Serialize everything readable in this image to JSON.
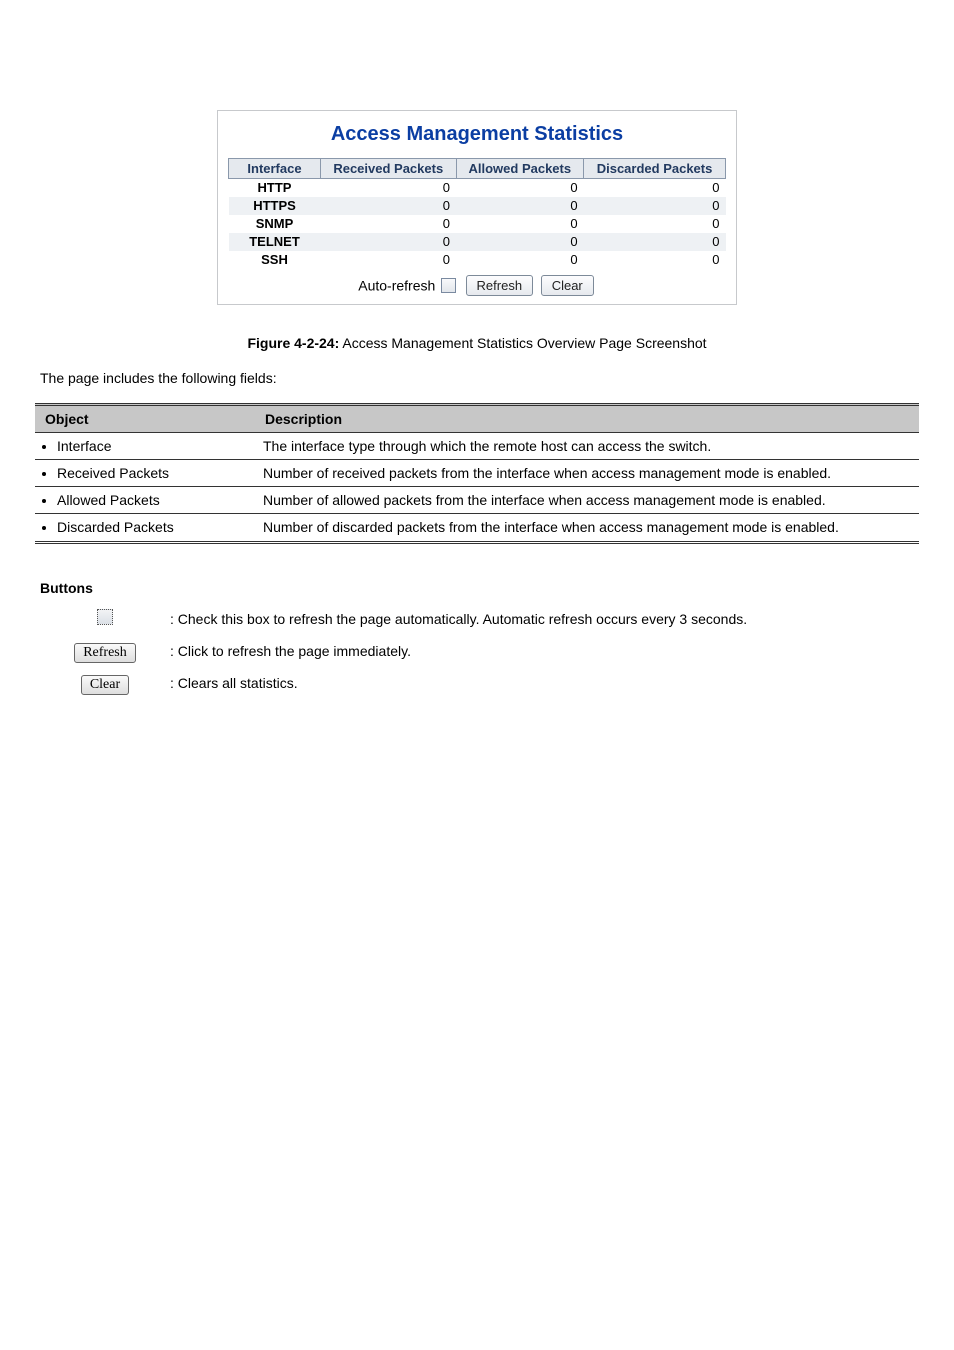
{
  "panel": {
    "title": "Access Management Statistics",
    "columns": [
      "Interface",
      "Received Packets",
      "Allowed Packets",
      "Discarded Packets"
    ],
    "rows": [
      {
        "iface": "HTTP",
        "received": "0",
        "allowed": "0",
        "discarded": "0",
        "alt": false
      },
      {
        "iface": "HTTPS",
        "received": "0",
        "allowed": "0",
        "discarded": "0",
        "alt": true
      },
      {
        "iface": "SNMP",
        "received": "0",
        "allowed": "0",
        "discarded": "0",
        "alt": false
      },
      {
        "iface": "TELNET",
        "received": "0",
        "allowed": "0",
        "discarded": "0",
        "alt": true
      },
      {
        "iface": "SSH",
        "received": "0",
        "allowed": "0",
        "discarded": "0",
        "alt": false
      }
    ],
    "auto_refresh_label": "Auto-refresh",
    "refresh_label": "Refresh",
    "clear_label": "Clear"
  },
  "figure": {
    "prefix": "Figure 4-2-24:",
    "title": " Access Management Statistics Overview Page Screenshot"
  },
  "desc_line": "The page includes the following fields:",
  "obj_table": {
    "head_object": "Object",
    "head_desc": "Description",
    "rows": [
      {
        "obj": "Interface",
        "desc": "The interface type through which the remote host can access the switch."
      },
      {
        "obj": "Received Packets",
        "desc": "Number of received packets from the interface when access management mode is enabled."
      },
      {
        "obj": "Allowed Packets",
        "desc": "Number of allowed packets from the interface when access management mode is enabled."
      },
      {
        "obj": "Discarded Packets",
        "desc": "Number of discarded packets from the interface when access management mode is enabled."
      }
    ]
  },
  "buttons": {
    "heading": "Buttons",
    "auto_refresh_desc": ": Check this box to refresh the page automatically. Automatic refresh occurs every 3 seconds.",
    "refresh_label": "Refresh",
    "refresh_desc": ": Click to refresh the page immediately.",
    "clear_label": "Clear",
    "clear_desc": ": Clears all statistics."
  }
}
